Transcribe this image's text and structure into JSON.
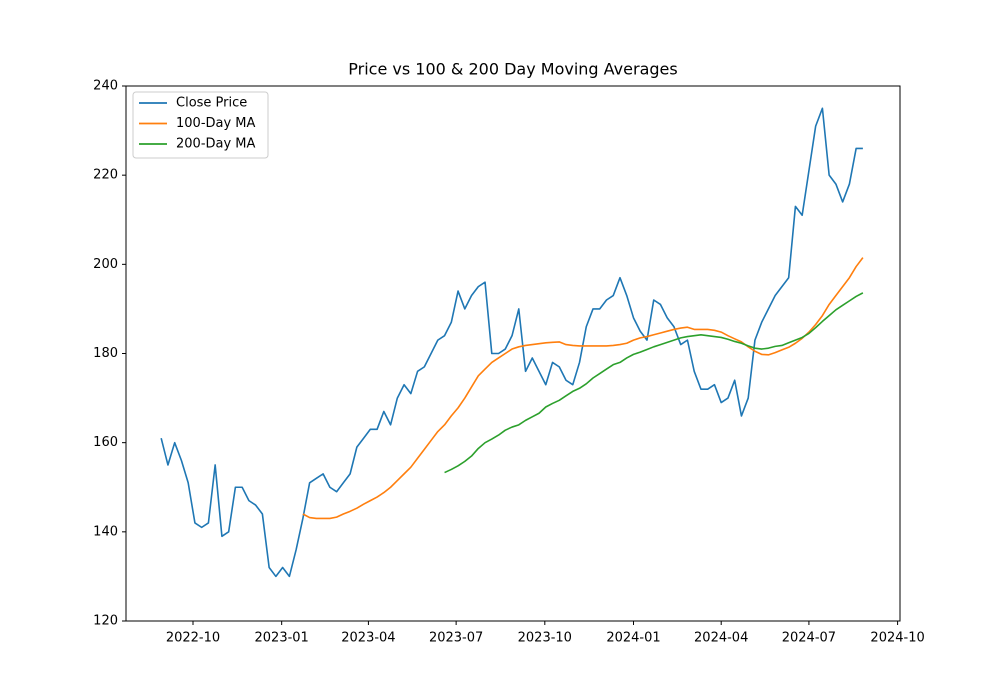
{
  "chart_data": {
    "type": "line",
    "title": "Price vs 100 & 200 Day Moving Averages",
    "x": [
      19233,
      19240,
      19247,
      19254,
      19261,
      19268,
      19275,
      19282,
      19289,
      19296,
      19303,
      19310,
      19317,
      19324,
      19331,
      19338,
      19345,
      19352,
      19359,
      19366,
      19373,
      19380,
      19387,
      19394,
      19401,
      19408,
      19415,
      19422,
      19429,
      19436,
      19443,
      19450,
      19457,
      19464,
      19471,
      19478,
      19485,
      19492,
      19499,
      19506,
      19513,
      19520,
      19527,
      19534,
      19541,
      19548,
      19555,
      19562,
      19569,
      19576,
      19583,
      19590,
      19597,
      19604,
      19611,
      19618,
      19625,
      19632,
      19639,
      19646,
      19653,
      19660,
      19667,
      19674,
      19681,
      19688,
      19695,
      19702,
      19709,
      19716,
      19723,
      19730,
      19737,
      19744,
      19751,
      19758,
      19765,
      19772,
      19779,
      19786,
      19793,
      19800,
      19807,
      19814,
      19821,
      19828,
      19835,
      19842,
      19849,
      19856,
      19863,
      19870,
      19877,
      19884,
      19891,
      19898,
      19905,
      19912,
      19919,
      19926,
      19933,
      19940,
      19947,
      19954,
      19961
    ],
    "series": [
      {
        "name": "Close Price",
        "color": "#1f77b4",
        "values": [
          161,
          155,
          160,
          156,
          151,
          142,
          141,
          142,
          155,
          139,
          140,
          150,
          150,
          147,
          146,
          144,
          132,
          130,
          132,
          130,
          136,
          143,
          151,
          152,
          153,
          150,
          149,
          151,
          153,
          159,
          161,
          163,
          163,
          167,
          164,
          170,
          173,
          171,
          176,
          177,
          180,
          183,
          184,
          187,
          194,
          190,
          193,
          195,
          196,
          180,
          180,
          181,
          184,
          190,
          176,
          179,
          176,
          173,
          178,
          177,
          174,
          173,
          178,
          186,
          190,
          190,
          192,
          193,
          197,
          193,
          188,
          185,
          183,
          192,
          191,
          188,
          186,
          182,
          183,
          176,
          172,
          172,
          173,
          169,
          170,
          174,
          166,
          170,
          183,
          187,
          190,
          193,
          195,
          197,
          213,
          211,
          221,
          231,
          235,
          220,
          218,
          214,
          218,
          226,
          226
        ]
      },
      {
        "name": "100-Day MA",
        "color": "#ff7f0e",
        "values": [
          null,
          null,
          null,
          null,
          null,
          null,
          null,
          null,
          null,
          null,
          null,
          null,
          null,
          null,
          null,
          null,
          null,
          null,
          null,
          null,
          null,
          144,
          143.2,
          143,
          143,
          143,
          143.3,
          144,
          144.6,
          145.3,
          146.2,
          147,
          147.8,
          148.8,
          150,
          151.5,
          153,
          154.5,
          156.5,
          158.5,
          160.5,
          162.5,
          164,
          166,
          167.8,
          170,
          172.5,
          175,
          176.5,
          178,
          179,
          180,
          181,
          181.5,
          181.8,
          182,
          182.2,
          182.4,
          182.5,
          182.6,
          182,
          181.8,
          181.7,
          181.7,
          181.7,
          181.7,
          181.7,
          181.8,
          182,
          182.3,
          183,
          183.5,
          183.8,
          184.2,
          184.6,
          185,
          185.4,
          185.7,
          185.9,
          185.4,
          185.4,
          185.4,
          185.2,
          184.8,
          184,
          183.3,
          182.6,
          181.5,
          180.5,
          179.8,
          179.7,
          180.2,
          180.8,
          181.4,
          182.3,
          183.4,
          184.8,
          186.5,
          188.5,
          191,
          193,
          195,
          197,
          199.5,
          201.5
        ]
      },
      {
        "name": "200-Day MA",
        "color": "#2ca02c",
        "values": [
          null,
          null,
          null,
          null,
          null,
          null,
          null,
          null,
          null,
          null,
          null,
          null,
          null,
          null,
          null,
          null,
          null,
          null,
          null,
          null,
          null,
          null,
          null,
          null,
          null,
          null,
          null,
          null,
          null,
          null,
          null,
          null,
          null,
          null,
          null,
          null,
          null,
          null,
          null,
          null,
          null,
          null,
          153.3,
          154,
          154.8,
          155.8,
          157,
          158.7,
          160,
          160.8,
          161.7,
          162.8,
          163.5,
          164,
          165,
          165.8,
          166.6,
          168,
          168.8,
          169.5,
          170.5,
          171.5,
          172.2,
          173.2,
          174.5,
          175.5,
          176.5,
          177.5,
          178,
          179,
          179.8,
          180.3,
          180.9,
          181.5,
          182,
          182.5,
          183,
          183.5,
          183.8,
          184,
          184.2,
          184,
          183.8,
          183.6,
          183.2,
          182.7,
          182.3,
          181.7,
          181.2,
          181,
          181.2,
          181.6,
          181.8,
          182.4,
          183,
          183.6,
          184.5,
          185.8,
          187.2,
          188.5,
          189.8,
          190.8,
          191.8,
          192.8,
          193.6
        ]
      }
    ],
    "xlim": [
      19196.5,
      19999.5
    ],
    "xticks": [
      {
        "value": 19266,
        "label": "2022-10"
      },
      {
        "value": 19358,
        "label": "2023-01"
      },
      {
        "value": 19448,
        "label": "2023-04"
      },
      {
        "value": 19539,
        "label": "2023-07"
      },
      {
        "value": 19631,
        "label": "2023-10"
      },
      {
        "value": 19723,
        "label": "2024-01"
      },
      {
        "value": 19814,
        "label": "2024-04"
      },
      {
        "value": 19905,
        "label": "2024-07"
      },
      {
        "value": 19997,
        "label": "2024-10"
      }
    ],
    "ylim": [
      120,
      240
    ],
    "yticks": [
      120,
      140,
      160,
      180,
      200,
      220,
      240
    ],
    "grid": false,
    "legend": "upper left"
  }
}
